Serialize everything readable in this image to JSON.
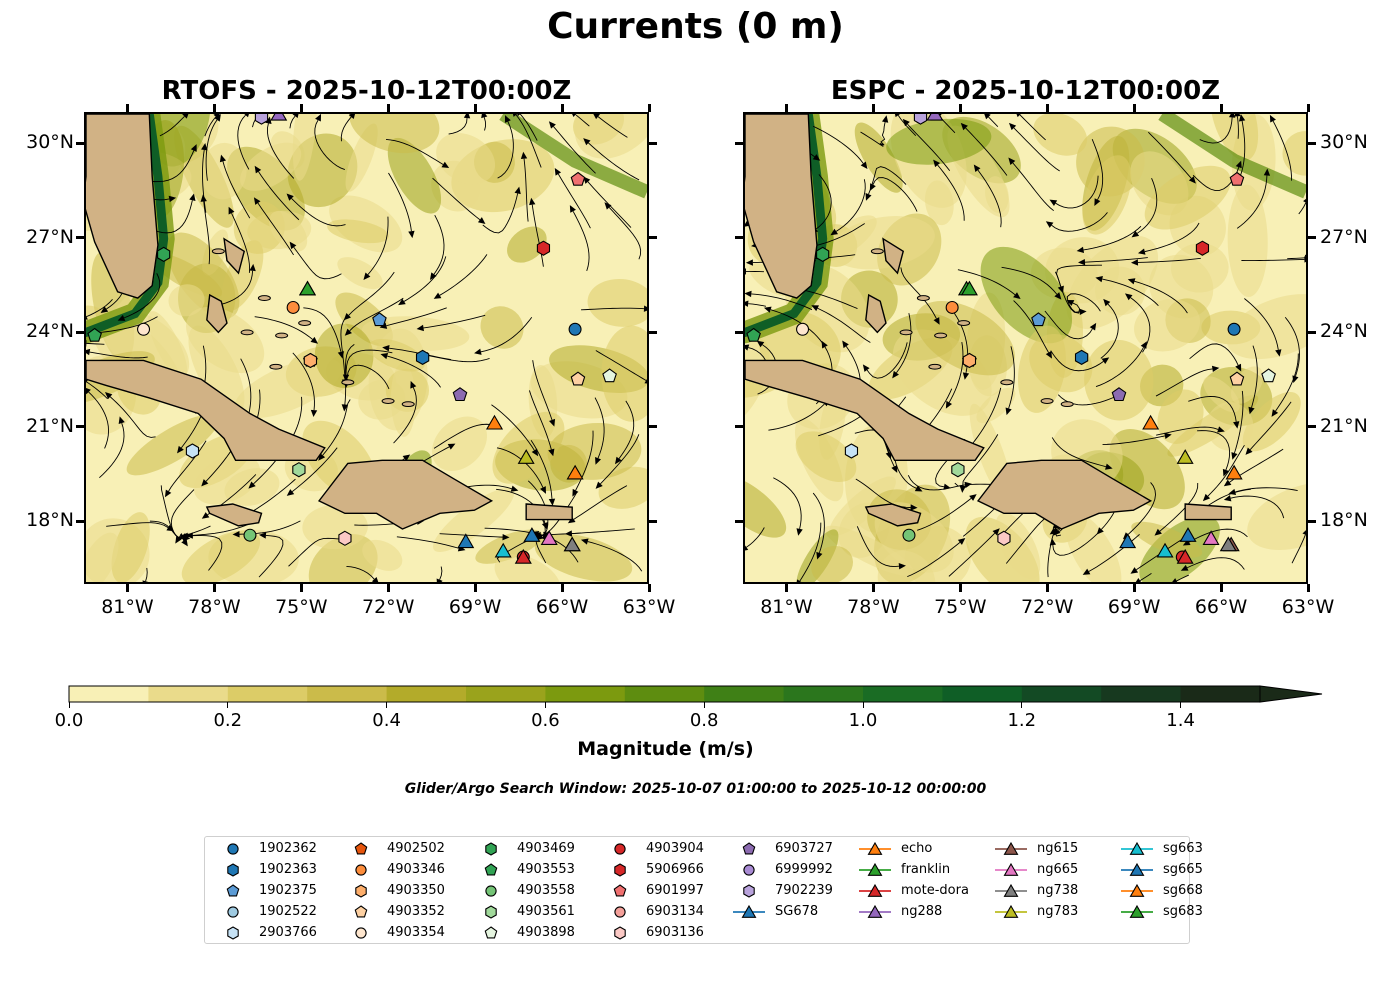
{
  "figure": {
    "suptitle": "Currents (0 m)",
    "window_text": "Glider/Argo Search Window: 2025-10-07 01:00:00 to 2025-10-12 00:00:00"
  },
  "colors": {
    "land": "#d1b285",
    "ocean_low": "#f6eeb4",
    "ocean_mid": "#cfc05a",
    "ocean_high": "#1f7a24",
    "streamline": "#000000"
  },
  "chart_data": [
    {
      "type": "heatmap",
      "title": "RTOFS - 2025-10-12T00:00Z",
      "extent": {
        "lon": [
          -82.5,
          -63
        ],
        "lat": [
          16,
          31
        ]
      },
      "xticks": [
        -81,
        -78,
        -75,
        -72,
        -69,
        -66,
        -63
      ],
      "xtick_labels": [
        "81°W",
        "78°W",
        "75°W",
        "72°W",
        "69°W",
        "66°W",
        "63°W"
      ],
      "yticks": [
        18,
        21,
        24,
        27,
        30
      ],
      "ytick_labels": [
        "18°N",
        "21°N",
        "24°N",
        "27°N",
        "30°N"
      ],
      "yaxis_side": "left"
    },
    {
      "type": "heatmap",
      "title": "ESPC - 2025-10-12T00:00Z",
      "extent": {
        "lon": [
          -82.5,
          -63
        ],
        "lat": [
          16,
          31
        ]
      },
      "xticks": [
        -81,
        -78,
        -75,
        -72,
        -69,
        -66,
        -63
      ],
      "xtick_labels": [
        "81°W",
        "78°W",
        "75°W",
        "72°W",
        "69°W",
        "66°W",
        "63°W"
      ],
      "yticks": [
        18,
        21,
        24,
        27,
        30
      ],
      "ytick_labels": [
        "18°N",
        "21°N",
        "24°N",
        "27°N",
        "30°N"
      ],
      "yaxis_side": "right"
    }
  ],
  "colorbar": {
    "label": "Magnitude (m/s)",
    "range": [
      0,
      1.5
    ],
    "step": 0.1,
    "extend": "max",
    "ticks": [
      0.0,
      0.2,
      0.4,
      0.6,
      0.8,
      1.0,
      1.2,
      1.4
    ],
    "tick_labels": [
      "0.0",
      "0.2",
      "0.4",
      "0.6",
      "0.8",
      "1.0",
      "1.2",
      "1.4"
    ],
    "colors": [
      "#f8f0b6",
      "#eadb8b",
      "#dccc67",
      "#cbbb4a",
      "#b3ab2a",
      "#9aa31c",
      "#7c9a0f",
      "#5e8d10",
      "#3f8016",
      "#2b761d",
      "#1a6c24",
      "#0f5e26",
      "#134a24",
      "#17391f",
      "#1a2a18"
    ]
  },
  "markers": [
    {
      "label": "1902362",
      "symbol": "circle",
      "color": "#1f77b4",
      "lon": -65.5,
      "lat": 24.1
    },
    {
      "label": "1902363",
      "symbol": "hexagon",
      "color": "#1f77b4",
      "lon": -70.8,
      "lat": 23.2
    },
    {
      "label": "1902375",
      "symbol": "pentagon",
      "color": "#5b9bd5",
      "lon": -72.3,
      "lat": 24.4
    },
    {
      "label": "1902522",
      "symbol": "circle",
      "color": "#9ecae1",
      "lon": -78.8,
      "lat": 20.2
    },
    {
      "label": "2903766",
      "symbol": "hexagon",
      "color": "#c6e2f5",
      "lon": -78.8,
      "lat": 20.2
    },
    {
      "label": "4902502",
      "symbol": "pentagon",
      "color": "#e6550d",
      "lon": -74.7,
      "lat": 23.1
    },
    {
      "label": "4903346",
      "symbol": "circle",
      "color": "#fd8d3c",
      "lon": -75.3,
      "lat": 24.8
    },
    {
      "label": "4903350",
      "symbol": "hexagon",
      "color": "#fdae6b",
      "lon": -74.7,
      "lat": 23.1
    },
    {
      "label": "4903352",
      "symbol": "pentagon",
      "color": "#fdd0a2",
      "lon": -65.4,
      "lat": 22.5
    },
    {
      "label": "4903354",
      "symbol": "circle",
      "color": "#fee6ce",
      "lon": -80.5,
      "lat": 24.1
    },
    {
      "label": "4903469",
      "symbol": "hexagon",
      "color": "#31a354",
      "lon": -79.8,
      "lat": 26.5
    },
    {
      "label": "4903553",
      "symbol": "pentagon",
      "color": "#31a354",
      "lon": -82.2,
      "lat": 23.9
    },
    {
      "label": "4903558",
      "symbol": "circle",
      "color": "#74c476",
      "lon": -76.8,
      "lat": 17.5
    },
    {
      "label": "4903561",
      "symbol": "hexagon",
      "color": "#a1d99b",
      "lon": -75.1,
      "lat": 19.6
    },
    {
      "label": "4903898",
      "symbol": "pentagon",
      "color": "#e5f5e0",
      "lon": -64.3,
      "lat": 22.6
    },
    {
      "label": "4903904",
      "symbol": "circle",
      "color": "#d62728",
      "lon": -67.3,
      "lat": 16.8
    },
    {
      "label": "5906966",
      "symbol": "hexagon",
      "color": "#d62728",
      "lon": -66.6,
      "lat": 26.7
    },
    {
      "label": "6901997",
      "symbol": "pentagon",
      "color": "#f07070",
      "lon": -65.4,
      "lat": 28.9
    },
    {
      "label": "6903134",
      "symbol": "circle",
      "color": "#f4a09a",
      "lon": -73.5,
      "lat": 17.4
    },
    {
      "label": "6903136",
      "symbol": "hexagon",
      "color": "#fbc9c5",
      "lon": -73.5,
      "lat": 17.4
    },
    {
      "label": "6903727",
      "symbol": "pentagon",
      "color": "#8c6bb1",
      "lon": -69.5,
      "lat": 22.0
    },
    {
      "label": "6999992",
      "symbol": "circle",
      "color": "#a98bd4",
      "lon": -76.4,
      "lat": 30.9
    },
    {
      "label": "7902239",
      "symbol": "hexagon",
      "color": "#b9a3dc",
      "lon": -76.4,
      "lat": 30.9
    },
    {
      "label": "SG678",
      "symbol": "triangle",
      "color": "#1f77b4",
      "lon": -69.3,
      "lat": 17.3
    },
    {
      "label": "echo",
      "symbol": "triangle",
      "color": "#ff7f0e",
      "lon": -68.3,
      "lat": 21.1
    },
    {
      "label": "franklin",
      "symbol": "triangle",
      "color": "#2ca02c",
      "lon": -74.8,
      "lat": 25.4
    },
    {
      "label": "mote-dora",
      "symbol": "triangle",
      "color": "#d62728",
      "lon": -67.3,
      "lat": 16.8
    },
    {
      "label": "ng288",
      "symbol": "triangle",
      "color": "#9467bd",
      "lon": -75.8,
      "lat": 31.0
    },
    {
      "label": "ng615",
      "symbol": "triangle",
      "color": "#8c564b",
      "lon": -65.6,
      "lat": 17.2
    },
    {
      "label": "ng665",
      "symbol": "triangle",
      "color": "#e377c2",
      "lon": -66.4,
      "lat": 17.4
    },
    {
      "label": "ng738",
      "symbol": "triangle",
      "color": "#7f7f7f",
      "lon": -65.6,
      "lat": 17.2
    },
    {
      "label": "ng783",
      "symbol": "triangle",
      "color": "#bcbd22",
      "lon": -67.2,
      "lat": 20.0
    },
    {
      "label": "sg663",
      "symbol": "triangle",
      "color": "#17becf",
      "lon": -68.0,
      "lat": 17.0
    },
    {
      "label": "sg665",
      "symbol": "triangle",
      "color": "#1f77b4",
      "lon": -67.0,
      "lat": 17.5
    },
    {
      "label": "sg668",
      "symbol": "triangle",
      "color": "#ff7f0e",
      "lon": -65.5,
      "lat": 19.5
    },
    {
      "label": "sg683",
      "symbol": "triangle",
      "color": "#2ca02c",
      "lon": -74.8,
      "lat": 25.4
    }
  ]
}
